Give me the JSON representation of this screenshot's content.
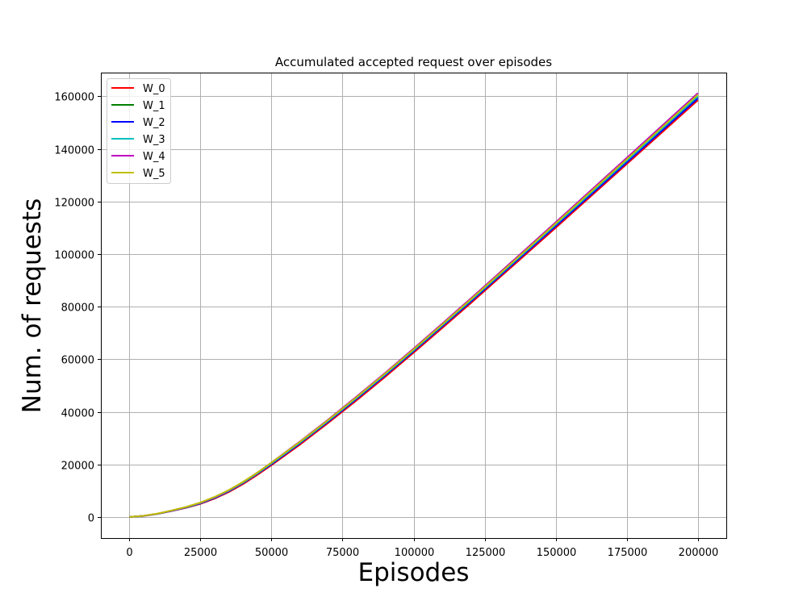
{
  "chart_data": {
    "type": "line",
    "title": "Accumulated accepted request over episodes",
    "xlabel": "Episodes",
    "ylabel": "Num. of requests",
    "xlim": [
      -10000,
      210000
    ],
    "ylim": [
      -8000,
      169000
    ],
    "xticks": [
      0,
      25000,
      50000,
      75000,
      100000,
      125000,
      150000,
      175000,
      200000
    ],
    "yticks": [
      0,
      20000,
      40000,
      60000,
      80000,
      100000,
      120000,
      140000,
      160000
    ],
    "grid": true,
    "legend_position": "upper-left",
    "x": [
      0,
      5000,
      10000,
      15000,
      20000,
      25000,
      30000,
      35000,
      40000,
      45000,
      50000,
      60000,
      70000,
      80000,
      90000,
      100000,
      110000,
      120000,
      130000,
      140000,
      150000,
      160000,
      170000,
      180000,
      190000,
      200000
    ],
    "series": [
      {
        "name": "W_0",
        "color": "#ff0000",
        "values": [
          0,
          400,
          1200,
          2300,
          3500,
          5000,
          7000,
          9500,
          12500,
          16000,
          19700,
          27500,
          35800,
          44400,
          53300,
          62500,
          71800,
          81200,
          90800,
          100400,
          110000,
          119700,
          129400,
          139100,
          148800,
          158500
        ]
      },
      {
        "name": "W_1",
        "color": "#008000",
        "values": [
          0,
          420,
          1250,
          2400,
          3650,
          5250,
          7350,
          9900,
          13000,
          16500,
          20300,
          28200,
          36500,
          45200,
          54100,
          63300,
          72700,
          82100,
          91700,
          101300,
          111000,
          120700,
          130400,
          140200,
          150000,
          159800
        ]
      },
      {
        "name": "W_2",
        "color": "#0000ff",
        "values": [
          0,
          410,
          1230,
          2350,
          3600,
          5150,
          7250,
          9800,
          12900,
          16400,
          20100,
          28000,
          36300,
          44950,
          53850,
          63050,
          72400,
          81800,
          91400,
          101000,
          110650,
          120300,
          130000,
          139750,
          149500,
          159200
        ]
      },
      {
        "name": "W_3",
        "color": "#00bfbf",
        "values": [
          0,
          425,
          1260,
          2420,
          3680,
          5300,
          7400,
          9950,
          13050,
          16550,
          20350,
          28250,
          36600,
          45300,
          54200,
          63400,
          72800,
          82250,
          91850,
          101500,
          111200,
          120900,
          130650,
          140400,
          150200,
          160000
        ]
      },
      {
        "name": "W_4",
        "color": "#bf00bf",
        "values": [
          0,
          440,
          1300,
          2480,
          3780,
          5400,
          7550,
          10150,
          13300,
          16850,
          20700,
          28700,
          37100,
          45850,
          54800,
          64050,
          73500,
          83000,
          92650,
          102350,
          112100,
          121900,
          131700,
          141500,
          151350,
          161200
        ]
      },
      {
        "name": "W_5",
        "color": "#bfbf00",
        "values": [
          0,
          450,
          1320,
          2520,
          3850,
          5500,
          7650,
          10250,
          13350,
          16850,
          20650,
          28550,
          36900,
          45600,
          54550,
          63750,
          73150,
          82600,
          92250,
          101900,
          111650,
          121400,
          131150,
          140950,
          150750,
          160600
        ]
      }
    ]
  }
}
